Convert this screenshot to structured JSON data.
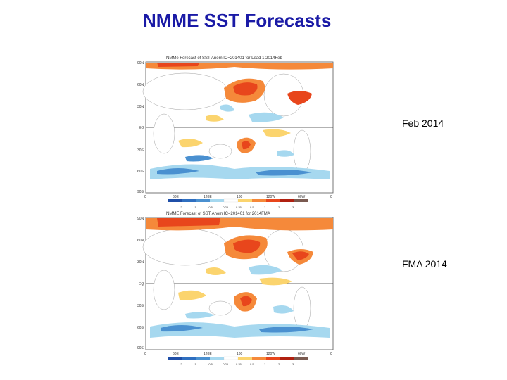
{
  "slide": {
    "title": "NMME SST Forecasts"
  },
  "panels": [
    {
      "label": "Feb 2014",
      "map_title": "NMMe Forecast of SST Anom IC=201401 for Lead 1 2014Feb",
      "lat_labels": [
        "90N",
        "60N",
        "30N",
        "EQ",
        "30S",
        "60S",
        "90S"
      ],
      "lon_labels": [
        "0",
        "60E",
        "120E",
        "180",
        "120W",
        "60W",
        "0"
      ],
      "colorbar_ticks": [
        "-2",
        "-1",
        "-0.5",
        "-0.25",
        "0.25",
        "0.5",
        "1",
        "2",
        "3"
      ]
    },
    {
      "label": "FMA 2014",
      "map_title": "NMME Forecast of SST Anom IC=201401 for 2014FMA",
      "lat_labels": [
        "90N",
        "60N",
        "30N",
        "EQ",
        "30S",
        "60S",
        "90S"
      ],
      "lon_labels": [
        "0",
        "60E",
        "120E",
        "180",
        "120W",
        "60W",
        "0"
      ],
      "colorbar_ticks": [
        "-2",
        "-1",
        "-0.5",
        "-0.25",
        "0.25",
        "0.5",
        "1",
        "2",
        "3"
      ]
    }
  ],
  "colors": {
    "title": "#1a1aa6",
    "warm_strong": "#e8461c",
    "warm": "#f5893a",
    "warm_light": "#fbd46e",
    "cool_light": "#a6d8ef",
    "cool": "#4a90d0",
    "cool_strong": "#1f4fa8"
  }
}
